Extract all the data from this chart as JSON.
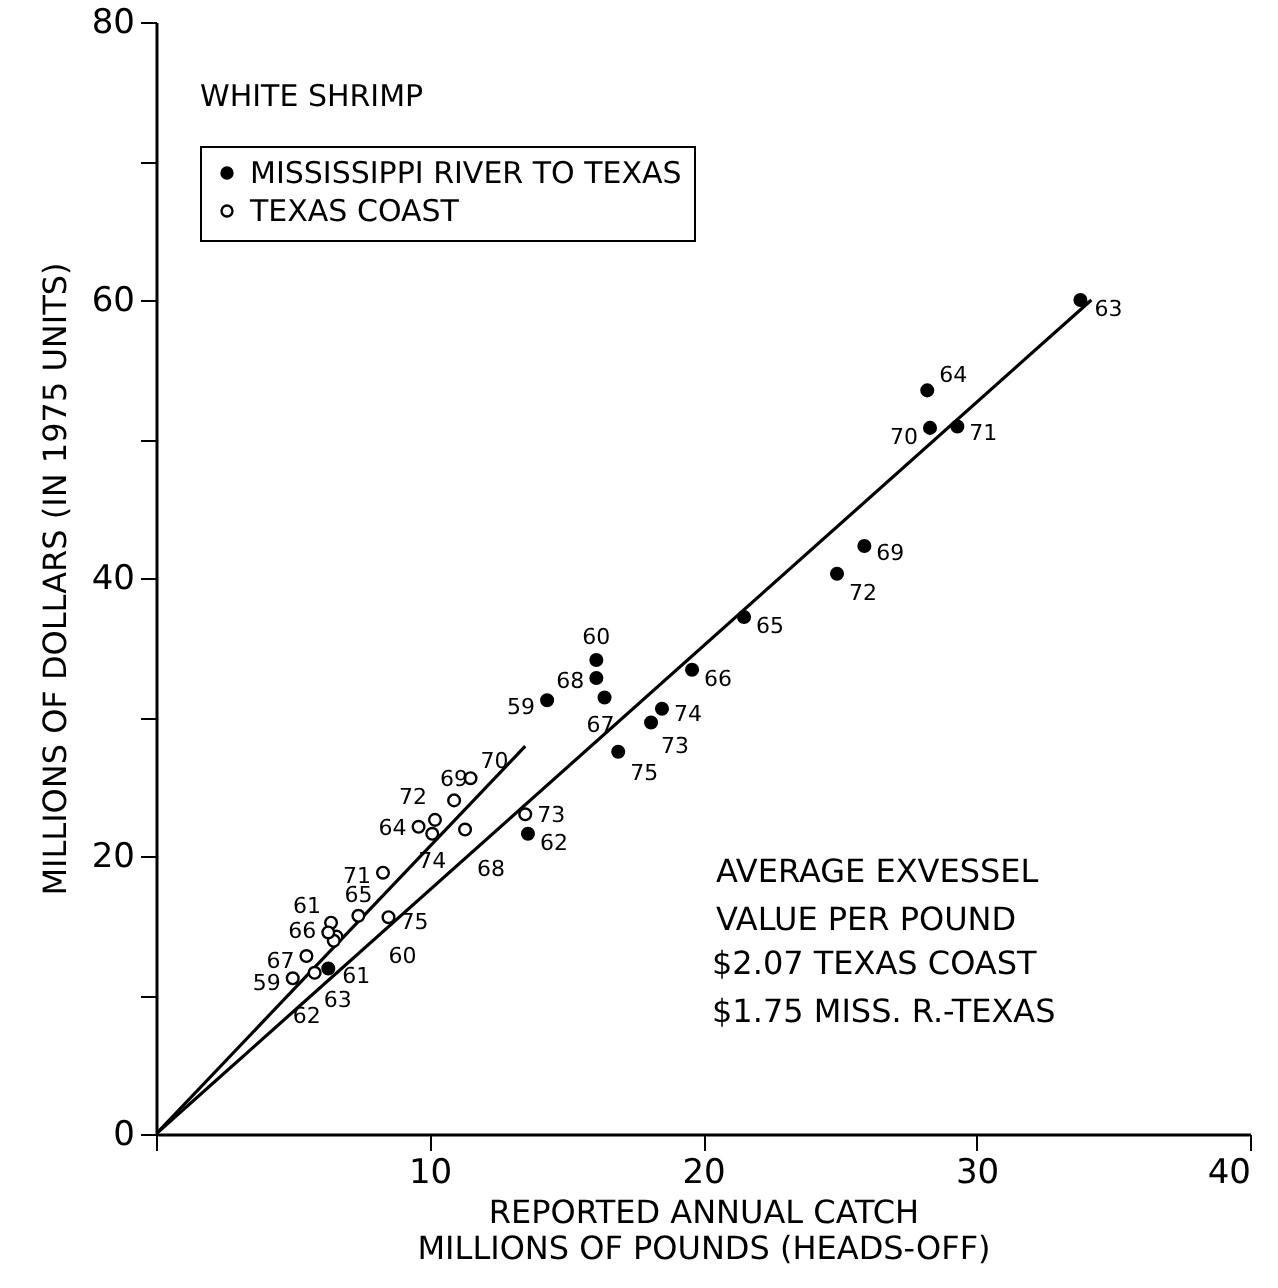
{
  "chart_data": {
    "type": "scatter",
    "title": "WHITE SHRIMP",
    "xlabel": "REPORTED ANNUAL CATCH\nMILLIONS OF POUNDS (HEADS-OFF)",
    "ylabel": "MILLIONS OF DOLLARS (IN 1975 UNITS)",
    "xlim": [
      0,
      40
    ],
    "xticks": [
      {
        "value": 0,
        "label": null
      },
      10,
      20,
      30,
      40
    ],
    "ylim": [
      0,
      80
    ],
    "yticks": [
      0,
      {
        "value": 10,
        "label": null
      },
      20,
      {
        "value": 30,
        "label": null
      },
      40,
      {
        "value": 50,
        "label": null
      },
      60,
      {
        "value": 70,
        "label": null
      },
      80
    ],
    "grid": false,
    "legend": "top left",
    "series": [
      {
        "name": "MISSISSIPPI RIVER TO TEXAS",
        "color": "#000000",
        "marker": "circle",
        "x": [
          14.3,
          16.1,
          6.3,
          13.6,
          33.8,
          28.2,
          21.5,
          19.6,
          16.4,
          16.1,
          25.9,
          28.3,
          29.3,
          24.9,
          18.1,
          18.5,
          16.9
        ],
        "values": [
          31.2,
          34.1,
          11.9,
          21.6,
          60.0,
          53.5,
          37.2,
          33.4,
          31.4,
          32.8,
          42.3,
          50.8,
          50.9,
          40.3,
          29.6,
          30.6,
          27.5
        ]
      },
      {
        "name": "TEXAS COAST",
        "color": "#000000",
        "marker": "circle",
        "x": [
          5.0,
          6.6,
          6.4,
          5.8,
          6.5,
          9.6,
          7.4,
          6.3,
          5.5,
          11.3,
          10.9,
          11.5,
          8.3,
          10.2,
          13.5,
          10.1,
          8.5
        ],
        "values": [
          11.2,
          14.2,
          15.2,
          11.6,
          13.9,
          22.1,
          15.7,
          14.5,
          12.8,
          21.9,
          24.0,
          25.6,
          18.8,
          22.6,
          23.0,
          21.6,
          15.6
        ]
      },
      {
        "type": "line",
        "color": "#000000",
        "marker": "none",
        "x": [
          0,
          34.2
        ],
        "values": [
          0,
          60.0
        ]
      },
      {
        "type": "line",
        "color": "#000000",
        "marker": "none",
        "x": [
          0,
          13.5
        ],
        "values": [
          0,
          27.9
        ]
      }
    ],
    "annotations": [
      {
        "text": "59",
        "x": 14.3,
        "y": 31.2
      },
      {
        "text": "60",
        "x": 16.1,
        "y": 34.1
      },
      {
        "text": "61",
        "x": 6.3,
        "y": 11.9
      },
      {
        "text": "62",
        "x": 13.6,
        "y": 21.6
      },
      {
        "text": "63",
        "x": 33.8,
        "y": 60.0
      },
      {
        "text": "64",
        "x": 28.2,
        "y": 53.5
      },
      {
        "text": "65",
        "x": 21.5,
        "y": 37.2
      },
      {
        "text": "66",
        "x": 19.6,
        "y": 33.4
      },
      {
        "text": "67",
        "x": 16.4,
        "y": 31.4
      },
      {
        "text": "68",
        "x": 16.1,
        "y": 32.8
      },
      {
        "text": "69",
        "x": 25.9,
        "y": 42.3
      },
      {
        "text": "70",
        "x": 28.3,
        "y": 50.8
      },
      {
        "text": "71",
        "x": 29.3,
        "y": 50.9
      },
      {
        "text": "72",
        "x": 24.9,
        "y": 40.3
      },
      {
        "text": "73",
        "x": 18.1,
        "y": 29.6
      },
      {
        "text": "74",
        "x": 18.5,
        "y": 30.6
      },
      {
        "text": "75",
        "x": 16.9,
        "y": 27.5
      },
      {
        "text": "59",
        "x": 5.0,
        "y": 11.2
      },
      {
        "text": "60",
        "x": 6.6,
        "y": 14.2
      },
      {
        "text": "61",
        "x": 6.4,
        "y": 15.2
      },
      {
        "text": "62",
        "x": 5.8,
        "y": 11.6
      },
      {
        "text": "63",
        "x": 6.5,
        "y": 13.9
      },
      {
        "text": "64",
        "x": 9.6,
        "y": 22.1
      },
      {
        "text": "65",
        "x": 7.4,
        "y": 15.7
      },
      {
        "text": "66",
        "x": 6.3,
        "y": 14.5
      },
      {
        "text": "67",
        "x": 5.5,
        "y": 12.8
      },
      {
        "text": "68",
        "x": 11.3,
        "y": 21.9
      },
      {
        "text": "69",
        "x": 10.9,
        "y": 24.0
      },
      {
        "text": "70",
        "x": 11.5,
        "y": 25.6
      },
      {
        "text": "71",
        "x": 8.3,
        "y": 18.8
      },
      {
        "text": "72",
        "x": 10.2,
        "y": 22.6
      },
      {
        "text": "73",
        "x": 13.5,
        "y": 23.0
      },
      {
        "text": "74",
        "x": 10.1,
        "y": 21.6
      },
      {
        "text": "75",
        "x": 8.5,
        "y": 15.6
      },
      "AVERAGE EXVESSEL\nVALUE PER POUND",
      "$2.07 TEXAS COAST\n$1.75 MISS. R.-TEXAS"
    ]
  }
}
